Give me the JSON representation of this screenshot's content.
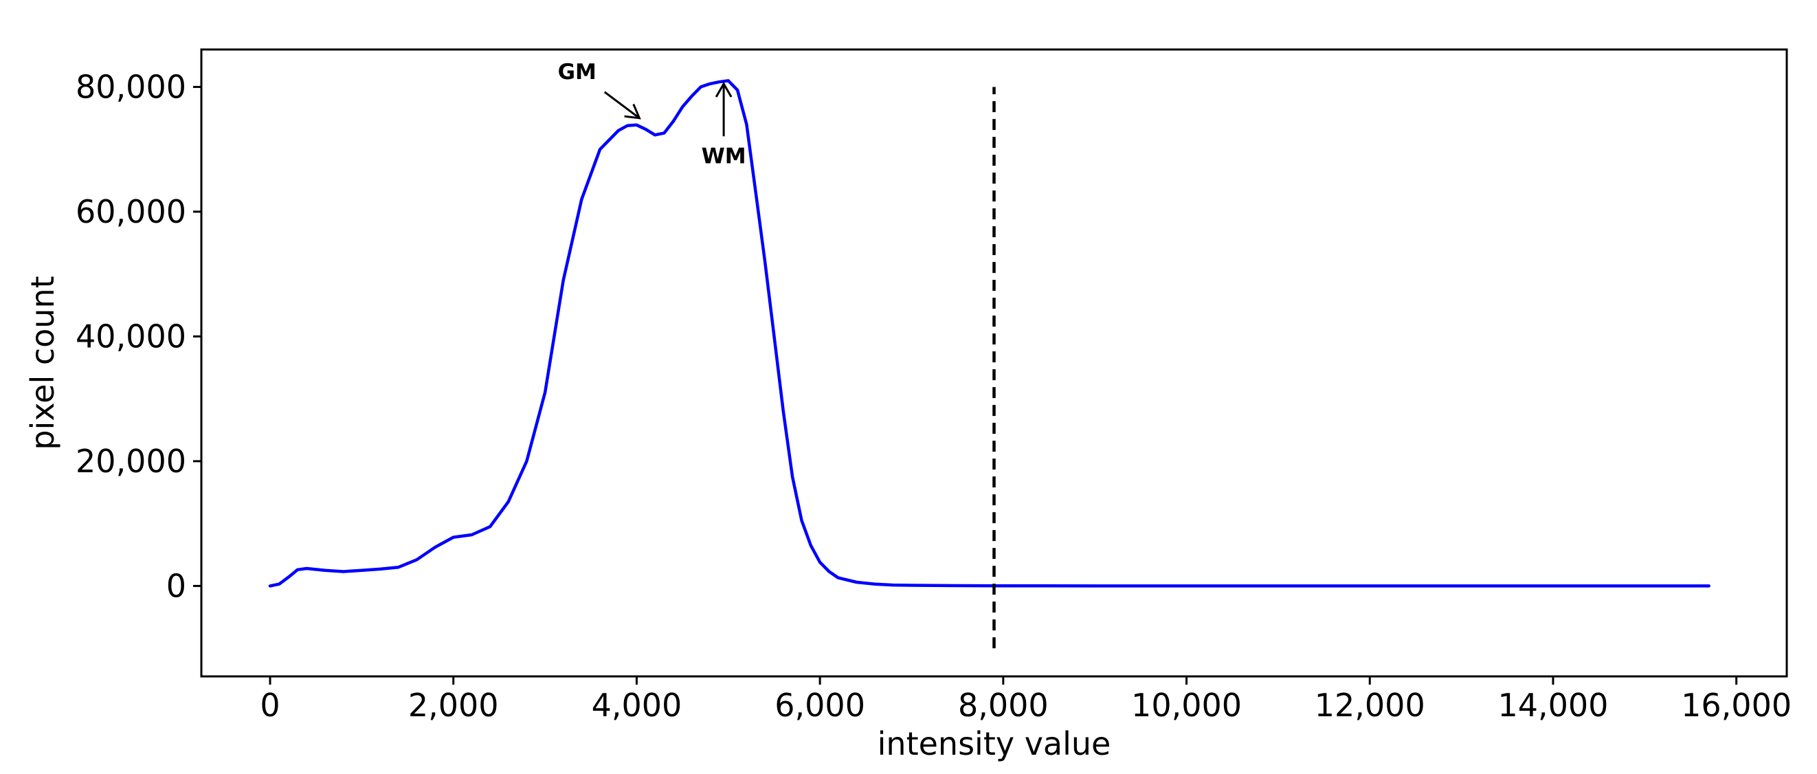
{
  "chart_data": {
    "type": "line",
    "title": "",
    "xlabel": "intensity value",
    "ylabel": "pixel count",
    "xlim": [
      -750,
      16550
    ],
    "ylim": [
      -14500,
      86000
    ],
    "x_ticks": [
      0,
      2000,
      4000,
      6000,
      8000,
      10000,
      12000,
      14000,
      16000
    ],
    "x_tick_labels": [
      "0",
      "2,000",
      "4,000",
      "6,000",
      "8,000",
      "10,000",
      "12,000",
      "14,000",
      "16,000"
    ],
    "y_ticks": [
      0,
      20000,
      40000,
      60000,
      80000
    ],
    "y_tick_labels": [
      "0",
      "20,000",
      "40,000",
      "60,000",
      "80,000"
    ],
    "grid": false,
    "legend": "none",
    "series": [
      {
        "color": "#0000ff",
        "x": [
          0,
          100,
          200,
          300,
          400,
          600,
          800,
          1000,
          1200,
          1400,
          1600,
          1800,
          2000,
          2200,
          2400,
          2600,
          2800,
          3000,
          3200,
          3400,
          3600,
          3800,
          3900,
          4000,
          4100,
          4200,
          4300,
          4400,
          4500,
          4600,
          4700,
          4800,
          4900,
          5000,
          5100,
          5200,
          5300,
          5400,
          5500,
          5600,
          5700,
          5800,
          5900,
          6000,
          6100,
          6200,
          6400,
          6600,
          6800,
          7000,
          7500,
          8000,
          9000,
          10000,
          12000,
          14000,
          15700
        ],
        "values": [
          0,
          300,
          1400,
          2600,
          2800,
          2500,
          2300,
          2500,
          2700,
          3000,
          4200,
          6200,
          7800,
          8200,
          9500,
          13500,
          20000,
          31000,
          49000,
          62000,
          70000,
          73000,
          73800,
          73900,
          73200,
          72300,
          72600,
          74500,
          76800,
          78500,
          80000,
          80500,
          80800,
          81000,
          79500,
          74000,
          63000,
          52000,
          40000,
          28000,
          17500,
          10500,
          6500,
          3800,
          2300,
          1300,
          600,
          300,
          150,
          100,
          50,
          20,
          0,
          0,
          0,
          0,
          0
        ]
      }
    ],
    "vline": {
      "x": 7900,
      "y_range": [
        -10000,
        80000
      ],
      "style": "dashed",
      "color": "#000000"
    },
    "annotations": [
      {
        "text": "GM",
        "xy": [
          4030,
          75000
        ],
        "xytext": [
          3350,
          82500
        ]
      },
      {
        "text": "WM",
        "xy": [
          4950,
          80500
        ],
        "xytext": [
          4950,
          69000
        ]
      }
    ]
  }
}
